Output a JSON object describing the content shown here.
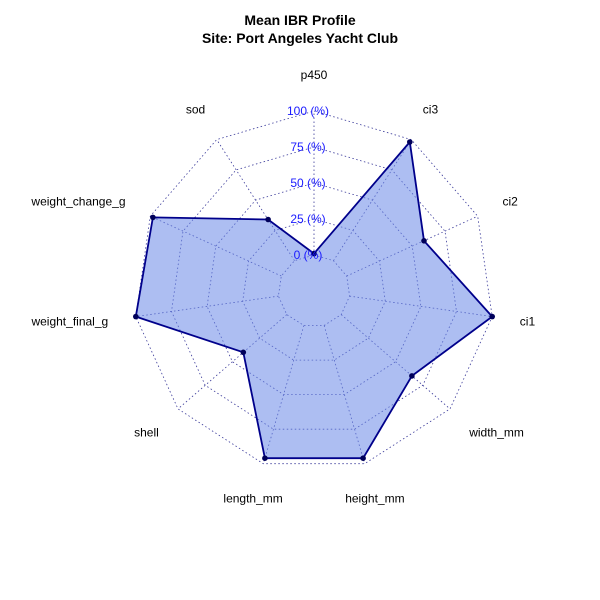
{
  "chart_data": {
    "type": "radar",
    "title": "Mean IBR Profile",
    "subtitle": "Site: Port Angeles Yacht Club",
    "axes": [
      "p450",
      "ci3",
      "ci2",
      "ci1",
      "width_mm",
      "height_mm",
      "length_mm",
      "shell",
      "weight_final_g",
      "weight_change_g",
      "sod"
    ],
    "rlim": [
      0,
      100
    ],
    "ticks": [
      0,
      25,
      50,
      75,
      100
    ],
    "tick_labels": [
      "0 (%)",
      "25 (%)",
      "50 (%)",
      "75 (%)",
      "100 (%)"
    ],
    "grid": true,
    "series": [
      {
        "values": [
          1,
          98,
          59,
          100,
          65,
          96,
          96,
          40,
          100,
          98,
          34
        ]
      }
    ],
    "colors": {
      "fill": "#6a88e8",
      "fill_opacity": 0.55,
      "line": "#00008b",
      "point": "#00005a",
      "grid": "#3a3a9a",
      "tick_text": "#1a1aff"
    }
  }
}
